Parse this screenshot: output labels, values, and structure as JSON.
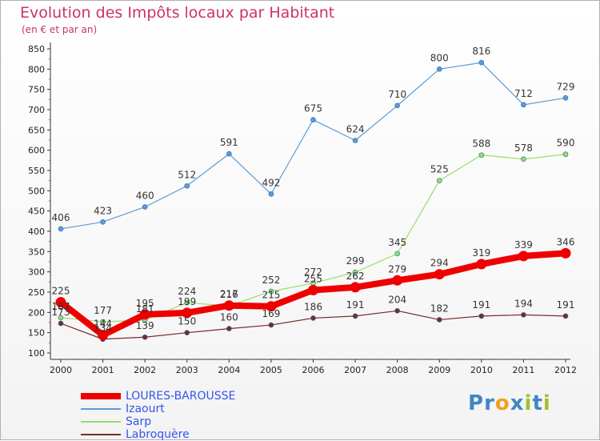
{
  "title": "Evolution des Impôts locaux par Habitant",
  "subtitle": "(en € et par an)",
  "brand": {
    "letters": [
      {
        "ch": "P",
        "color": "#3f86c6"
      },
      {
        "ch": "r",
        "color": "#3f86c6"
      },
      {
        "ch": "o",
        "color": "#f0a020"
      },
      {
        "ch": "x",
        "color": "#3f86c6"
      },
      {
        "ch": "i",
        "color": "#a0c030"
      },
      {
        "ch": "t",
        "color": "#3f86c6"
      },
      {
        "ch": "i",
        "color": "#a0c030"
      }
    ]
  },
  "chart_data": {
    "type": "line",
    "x": [
      "2000",
      "2001",
      "2002",
      "2003",
      "2004",
      "2005",
      "2006",
      "2007",
      "2008",
      "2009",
      "2010",
      "2011",
      "2012"
    ],
    "ylim": [
      100,
      850
    ],
    "yticks": [
      100,
      150,
      200,
      250,
      300,
      350,
      400,
      450,
      500,
      550,
      600,
      650,
      700,
      750,
      800,
      850
    ],
    "grid": false,
    "legend_position": "bottom-left",
    "series": [
      {
        "name": "LOURES-BAROUSSE",
        "color": "#ee0000",
        "emphasis": true,
        "values": [
          225,
          144,
          195,
          199,
          217,
          215,
          255,
          262,
          279,
          294,
          319,
          339,
          346
        ],
        "labels": [
          "225",
          "144",
          "195",
          "199",
          "217",
          "215",
          "255",
          "262",
          "279",
          "294",
          "319",
          "339",
          "346"
        ]
      },
      {
        "name": "Izaourt",
        "color": "#5b9bd5",
        "emphasis": false,
        "values": [
          406,
          423,
          460,
          512,
          591,
          492,
          675,
          624,
          710,
          800,
          816,
          712,
          729
        ],
        "labels": [
          "406",
          "423",
          "460",
          "512",
          "591",
          "492",
          "675",
          "624",
          "710",
          "800",
          "816",
          "712",
          "729"
        ]
      },
      {
        "name": "Sarp",
        "color": "#99dd66",
        "emphasis": false,
        "values": [
          187,
          177,
          181,
          224,
          216,
          252,
          272,
          299,
          345,
          525,
          588,
          578,
          590
        ],
        "labels": [
          "187",
          "177",
          "181",
          "224",
          "216",
          "252",
          "272",
          "299",
          "345",
          "525",
          "588",
          "578",
          "590"
        ]
      },
      {
        "name": "Labroquère",
        "color": "#7a2a2a",
        "emphasis": false,
        "values": [
          173,
          134,
          139,
          150,
          160,
          169,
          186,
          191,
          204,
          182,
          191,
          194,
          191
        ],
        "labels": [
          "173",
          "134",
          "139",
          "150",
          "160",
          "169",
          "186",
          "191",
          "204",
          "182",
          "191",
          "194",
          "191"
        ]
      }
    ]
  }
}
